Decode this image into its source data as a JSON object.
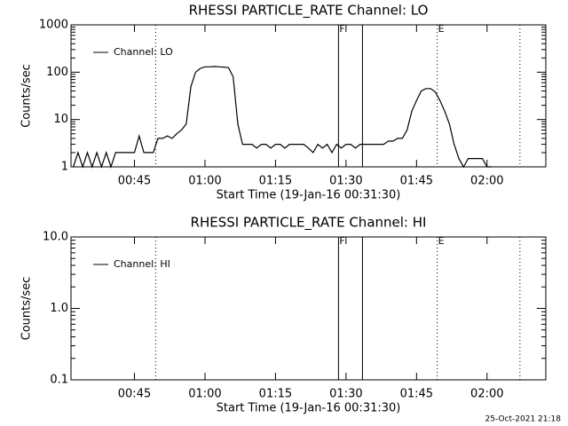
{
  "chart_data": [
    {
      "type": "line",
      "title": "RHESSI PARTICLE_RATE Channel: LO",
      "xlabel": "Start Time (19-Jan-16 00:31:30)",
      "ylabel": "Counts/sec",
      "log_y": true,
      "legend": "upper left",
      "xlim": [
        "00:31:30",
        "02:12:30"
      ],
      "xticks": [
        "00:45",
        "01:00",
        "01:15",
        "01:30",
        "01:45",
        "02:00"
      ],
      "ylim": [
        1,
        1000
      ],
      "yticks": [
        1,
        10,
        100,
        1000
      ],
      "vlines": [
        {
          "x": "00:49:30",
          "style": "dotted"
        },
        {
          "x": "01:28:24",
          "style": "solid",
          "label": "F"
        },
        {
          "x": "01:33:30",
          "style": "solid"
        },
        {
          "x": "01:49:24",
          "style": "dotted",
          "label": "E"
        },
        {
          "x": "02:07:00",
          "style": "dotted"
        }
      ],
      "series": [
        {
          "name": "Channel: LO",
          "color": "#000000",
          "x": [
            "00:32",
            "00:33",
            "00:34",
            "00:35",
            "00:36",
            "00:37",
            "00:38",
            "00:39",
            "00:40",
            "00:41",
            "00:42",
            "00:43",
            "00:44",
            "00:45",
            "00:46",
            "00:47",
            "00:48",
            "00:49",
            "00:50",
            "00:51",
            "00:52",
            "00:53",
            "00:54",
            "00:55",
            "00:56",
            "00:57",
            "00:58",
            "00:59",
            "01:00",
            "01:01",
            "01:02",
            "01:03",
            "01:04",
            "01:05",
            "01:06",
            "01:07",
            "01:08",
            "01:09",
            "01:10",
            "01:11",
            "01:12",
            "01:13",
            "01:14",
            "01:15",
            "01:16",
            "01:17",
            "01:18",
            "01:19",
            "01:20",
            "01:21",
            "01:22",
            "01:23",
            "01:24",
            "01:25",
            "01:26",
            "01:27",
            "01:28",
            "01:29",
            "01:30",
            "01:31",
            "01:32",
            "01:33",
            "01:34",
            "01:35",
            "01:36",
            "01:37",
            "01:38",
            "01:39",
            "01:40",
            "01:41",
            "01:42",
            "01:43",
            "01:44",
            "01:45",
            "01:46",
            "01:47",
            "01:48",
            "01:49",
            "01:50",
            "01:51",
            "01:52",
            "01:53",
            "01:54",
            "01:55",
            "01:56",
            "01:57",
            "01:58",
            "01:59",
            "02:00",
            "02:01"
          ],
          "values": [
            1,
            2,
            1,
            2,
            1,
            2,
            1,
            2,
            1,
            2,
            2,
            2,
            2,
            2,
            4.5,
            2,
            2,
            2,
            4,
            4,
            4.5,
            4,
            5,
            6,
            8,
            50,
            100,
            120,
            130,
            130,
            132,
            130,
            128,
            125,
            80,
            8,
            3,
            3,
            3,
            2.5,
            3,
            3,
            2.5,
            3,
            3,
            2.5,
            3,
            3,
            3,
            3,
            2.5,
            2,
            3,
            2.5,
            3,
            2,
            3,
            2.5,
            3,
            3,
            2.5,
            3,
            3,
            3,
            3,
            3,
            3,
            3.5,
            3.5,
            4,
            4,
            6,
            15,
            25,
            40,
            45,
            45,
            38,
            25,
            15,
            8,
            3,
            1.5,
            1,
            1.5,
            1.5,
            1.5,
            1.5,
            1,
            1
          ]
        }
      ]
    },
    {
      "type": "line",
      "title": "RHESSI PARTICLE_RATE Channel: HI",
      "xlabel": "Start Time (19-Jan-16 00:31:30)",
      "ylabel": "Counts/sec",
      "log_y": true,
      "legend": "upper left",
      "xlim": [
        "00:31:30",
        "02:12:30"
      ],
      "xticks": [
        "00:45",
        "01:00",
        "01:15",
        "01:30",
        "01:45",
        "02:00"
      ],
      "ylim": [
        0.1,
        10
      ],
      "yticks": [
        0.1,
        {
          "value": 1,
          "label": "1.0"
        },
        {
          "value": 10,
          "label": "10.0"
        }
      ],
      "vlines": [
        {
          "x": "00:49:30",
          "style": "dotted"
        },
        {
          "x": "01:28:24",
          "style": "solid",
          "label": "F"
        },
        {
          "x": "01:33:30",
          "style": "solid"
        },
        {
          "x": "01:49:24",
          "style": "dotted",
          "label": "E"
        },
        {
          "x": "02:07:00",
          "style": "dotted"
        }
      ],
      "series": [
        {
          "name": "Channel: HI",
          "color": "#000000",
          "x": [],
          "values": []
        }
      ]
    }
  ],
  "timestamp": "25-Oct-2021 21:18"
}
